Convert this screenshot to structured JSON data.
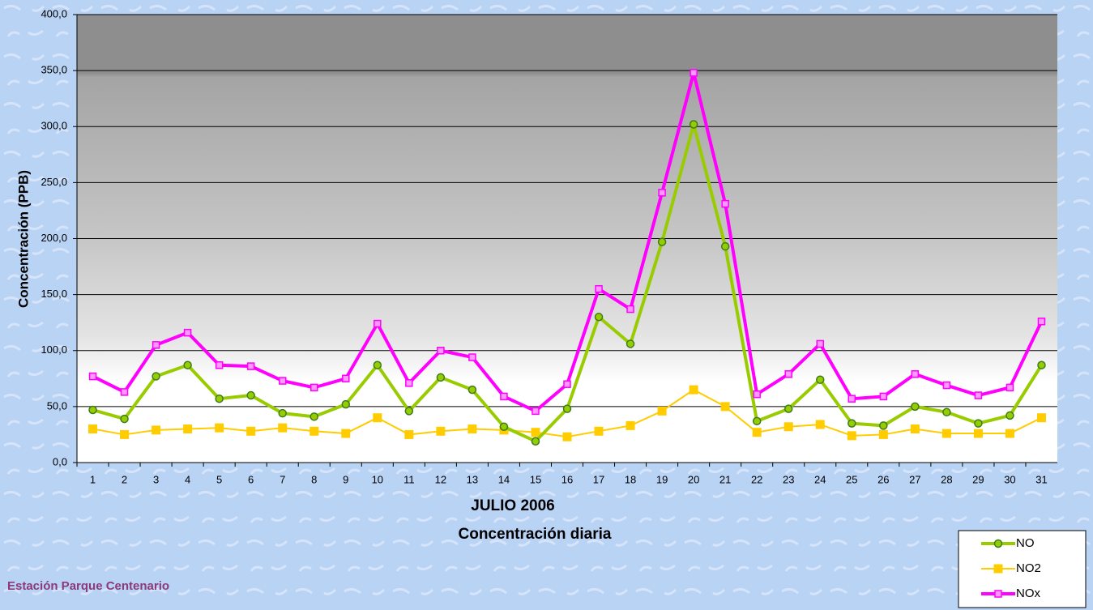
{
  "chart_data": {
    "type": "line",
    "ylabel": "Concentración  (PPB)",
    "xlabel": [
      "JULIO 2006",
      "Concentración diaria"
    ],
    "footer": "Estación Parque Centenario",
    "categories": [
      "1",
      "2",
      "3",
      "4",
      "5",
      "6",
      "7",
      "8",
      "9",
      "10",
      "11",
      "12",
      "13",
      "14",
      "15",
      "16",
      "17",
      "18",
      "19",
      "20",
      "21",
      "22",
      "23",
      "24",
      "25",
      "26",
      "27",
      "28",
      "29",
      "30",
      "31"
    ],
    "series": [
      {
        "name": "NO",
        "color": "#99cc00",
        "marker": "circle",
        "values": [
          47,
          39,
          77,
          87,
          57,
          60,
          44,
          41,
          52,
          87,
          46,
          76,
          65,
          32,
          19,
          48,
          130,
          106,
          197,
          302,
          193,
          37,
          48,
          74,
          35,
          33,
          50,
          45,
          35,
          42,
          87
        ]
      },
      {
        "name": "NO2",
        "color": "#ffcc00",
        "marker": "square",
        "values": [
          30,
          25,
          29,
          30,
          31,
          28,
          31,
          28,
          26,
          40,
          25,
          28,
          30,
          29,
          27,
          23,
          28,
          33,
          46,
          65,
          50,
          27,
          32,
          34,
          24,
          25,
          30,
          26,
          26,
          26,
          40
        ]
      },
      {
        "name": "NOx",
        "color": "#ff00ff",
        "marker": "small-square",
        "values": [
          77,
          63,
          105,
          116,
          87,
          86,
          73,
          67,
          75,
          124,
          71,
          100,
          94,
          59,
          46,
          70,
          155,
          137,
          241,
          348,
          231,
          61,
          79,
          106,
          57,
          59,
          79,
          69,
          60,
          67,
          126
        ]
      }
    ],
    "ylim": [
      0,
      400
    ],
    "yticks": [
      {
        "value": 0,
        "label": "0,0"
      },
      {
        "value": 50,
        "label": "50,0"
      },
      {
        "value": 100,
        "label": "100,0"
      },
      {
        "value": 150,
        "label": "150,0"
      },
      {
        "value": 200,
        "label": "200,0"
      },
      {
        "value": 250,
        "label": "250,0"
      },
      {
        "value": 300,
        "label": "300,0"
      },
      {
        "value": 350,
        "label": "350,0"
      },
      {
        "value": 400,
        "label": "400,0"
      }
    ],
    "grid": true,
    "legend": "lower right"
  }
}
